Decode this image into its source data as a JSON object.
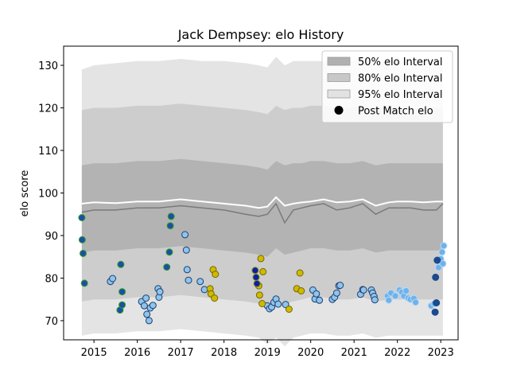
{
  "chart_data": {
    "type": "scatter",
    "title": "Jack Dempsey: elo History",
    "xlabel": "",
    "ylabel": "elo score",
    "xlim": [
      2014.3,
      2023.4
    ],
    "ylim": [
      65.5,
      134.5
    ],
    "x_ticks": [
      2015,
      2016,
      2017,
      2018,
      2019,
      2020,
      2021,
      2022,
      2023
    ],
    "y_ticks": [
      70,
      80,
      90,
      100,
      110,
      120,
      130
    ],
    "grid": false,
    "legend_placement": "top-right",
    "legend": [
      {
        "label": "50% elo Interval",
        "color": "#b0b0b0"
      },
      {
        "label": "80% elo Interval",
        "color": "#c8c8c8"
      },
      {
        "label": "95% elo Interval",
        "color": "#e2e2e2"
      },
      {
        "label": "Post Match elo",
        "color": "#000000"
      }
    ],
    "bands": {
      "x": [
        2014.72,
        2015.0,
        2015.5,
        2016.0,
        2016.5,
        2017.0,
        2017.5,
        2018.0,
        2018.5,
        2018.8,
        2019.0,
        2019.2,
        2019.4,
        2019.6,
        2019.8,
        2020.0,
        2020.3,
        2020.6,
        2020.9,
        2021.2,
        2021.5,
        2021.8,
        2022.0,
        2022.3,
        2022.6,
        2022.9,
        2023.05
      ],
      "p95_upper": [
        129,
        130,
        130.5,
        131,
        131,
        131.5,
        131,
        131,
        130.5,
        130,
        129.5,
        132,
        130,
        131,
        131,
        131,
        131,
        130.5,
        131,
        131.5,
        130.5,
        131,
        131,
        131,
        131,
        131,
        131
      ],
      "p80_upper": [
        119.5,
        120,
        120,
        120.5,
        120.5,
        121,
        120.5,
        120,
        119.5,
        119,
        118.5,
        120.5,
        119.5,
        120,
        120,
        120.5,
        120.5,
        120,
        120,
        120.5,
        119.5,
        120,
        120,
        120,
        120,
        120,
        120
      ],
      "p50_upper": [
        106.5,
        107,
        107,
        107.5,
        107.5,
        108,
        107.5,
        107,
        106.5,
        106,
        105.5,
        107.5,
        106.5,
        107,
        107,
        107.5,
        107.5,
        107,
        107,
        107.5,
        106.5,
        107,
        107,
        107,
        107,
        107,
        107
      ],
      "median": [
        97.5,
        97.8,
        97.6,
        98,
        98,
        98.5,
        98,
        97.5,
        97,
        96.5,
        96.8,
        99,
        97,
        97.5,
        97.8,
        98,
        98.5,
        97.8,
        98,
        98.5,
        97,
        97.8,
        98,
        98,
        97.8,
        98,
        98
      ],
      "mean": [
        95.5,
        96,
        96,
        96.5,
        96.5,
        97,
        96.5,
        96,
        95,
        94.5,
        95,
        97.5,
        93,
        96,
        96.5,
        97,
        97.5,
        96,
        96.5,
        97.5,
        95,
        96.5,
        96.5,
        96.5,
        96,
        96,
        97.5
      ],
      "p50_lower": [
        86,
        86.5,
        86.5,
        87,
        87,
        87.5,
        87,
        86.5,
        86,
        85.5,
        85,
        87,
        85.5,
        86,
        86.5,
        87,
        87,
        86.5,
        86.5,
        87,
        86,
        86.5,
        86.5,
        86.5,
        86.5,
        86.5,
        86.5
      ],
      "p80_lower": [
        74.5,
        75,
        75,
        75.5,
        75.5,
        76,
        75.5,
        75,
        74.5,
        74,
        73.5,
        75.5,
        74,
        74.5,
        75,
        75.5,
        75.5,
        75,
        75,
        75.5,
        74.5,
        75,
        75,
        75,
        75,
        75,
        75
      ],
      "p95_lower": [
        66.5,
        67,
        67,
        67.5,
        67.5,
        68,
        67.5,
        67,
        66.5,
        66,
        64.5,
        66,
        64,
        66,
        66.5,
        67,
        67,
        66.5,
        66.5,
        67,
        66,
        66.5,
        66.5,
        66.5,
        66.5,
        66.5,
        66.5
      ]
    },
    "point_groups": [
      {
        "fill": "#1f4fa3",
        "edge": "#2aa02a",
        "points": [
          [
            2014.72,
            94.2
          ],
          [
            2014.73,
            89.0
          ],
          [
            2014.75,
            85.8
          ],
          [
            2014.78,
            78.8
          ],
          [
            2015.62,
            83.2
          ],
          [
            2015.6,
            72.5
          ],
          [
            2015.65,
            73.7
          ],
          [
            2015.65,
            76.8
          ],
          [
            2016.68,
            82.6
          ],
          [
            2016.74,
            86.1
          ],
          [
            2016.76,
            92.3
          ],
          [
            2016.78,
            94.5
          ]
        ]
      },
      {
        "fill": "#8fc4ec",
        "edge": "#1f3f6f",
        "points": [
          [
            2015.38,
            79.2
          ],
          [
            2015.43,
            79.9
          ],
          [
            2016.1,
            74.5
          ],
          [
            2016.16,
            73.5
          ],
          [
            2016.2,
            75.3
          ],
          [
            2016.22,
            71.5
          ],
          [
            2016.27,
            70.0
          ],
          [
            2016.3,
            73.0
          ],
          [
            2016.36,
            73.6
          ],
          [
            2016.48,
            77.5
          ],
          [
            2016.5,
            75.5
          ],
          [
            2016.52,
            76.8
          ],
          [
            2017.1,
            90.2
          ],
          [
            2017.13,
            86.6
          ],
          [
            2017.15,
            82.0
          ],
          [
            2017.18,
            79.5
          ],
          [
            2017.45,
            79.2
          ],
          [
            2017.55,
            77.3
          ],
          [
            2019.0,
            73.5
          ],
          [
            2019.05,
            72.8
          ],
          [
            2019.1,
            73.2
          ],
          [
            2019.15,
            74.3
          ],
          [
            2019.2,
            75.1
          ],
          [
            2019.25,
            73.9
          ],
          [
            2019.42,
            73.8
          ],
          [
            2020.05,
            77.2
          ],
          [
            2020.1,
            75.1
          ],
          [
            2020.13,
            76.3
          ],
          [
            2020.2,
            74.8
          ],
          [
            2020.5,
            75.0
          ],
          [
            2020.55,
            75.5
          ],
          [
            2020.6,
            76.5
          ],
          [
            2020.65,
            78.2
          ],
          [
            2020.68,
            78.3
          ],
          [
            2021.15,
            76.2
          ],
          [
            2021.2,
            77.3
          ],
          [
            2021.22,
            77.2
          ],
          [
            2021.4,
            77.2
          ],
          [
            2021.43,
            76.5
          ],
          [
            2021.46,
            75.7
          ],
          [
            2021.48,
            74.9
          ]
        ]
      },
      {
        "fill": "#d4b800",
        "edge": "#6b6b00",
        "points": [
          [
            2017.75,
            82.0
          ],
          [
            2017.8,
            80.9
          ],
          [
            2017.68,
            77.5
          ],
          [
            2017.7,
            76.3
          ],
          [
            2017.78,
            75.3
          ],
          [
            2018.85,
            84.6
          ],
          [
            2018.9,
            81.5
          ],
          [
            2018.8,
            78.2
          ],
          [
            2018.82,
            76.0
          ],
          [
            2018.88,
            74.0
          ],
          [
            2019.5,
            72.7
          ],
          [
            2019.68,
            77.5
          ],
          [
            2019.75,
            81.2
          ],
          [
            2019.78,
            77.0
          ]
        ]
      },
      {
        "fill": "#0a1fb0",
        "edge": "#8b8b00",
        "points": [
          [
            2018.72,
            81.8
          ],
          [
            2018.74,
            80.2
          ],
          [
            2018.76,
            78.7
          ]
        ]
      },
      {
        "fill": "#6fb2ea",
        "edge": "#b8d9f5",
        "points": [
          [
            2021.77,
            75.8
          ],
          [
            2021.8,
            74.8
          ],
          [
            2021.85,
            76.5
          ],
          [
            2021.95,
            75.8
          ],
          [
            2022.05,
            77.2
          ],
          [
            2022.1,
            76.7
          ],
          [
            2022.15,
            75.8
          ],
          [
            2022.2,
            77.0
          ],
          [
            2022.25,
            75.3
          ],
          [
            2022.3,
            75.0
          ],
          [
            2022.38,
            75.2
          ],
          [
            2022.42,
            74.3
          ],
          [
            2022.78,
            73.5
          ],
          [
            2022.85,
            74.0
          ],
          [
            2022.95,
            82.5
          ],
          [
            2023.0,
            84.5
          ],
          [
            2023.03,
            86.1
          ],
          [
            2023.07,
            87.6
          ],
          [
            2023.05,
            83.4
          ]
        ]
      },
      {
        "fill": "#1a4a8f",
        "edge": "#1a4a8f",
        "points": [
          [
            2022.87,
            72.0
          ],
          [
            2022.9,
            74.2
          ],
          [
            2022.88,
            80.2
          ],
          [
            2022.92,
            84.2
          ]
        ]
      }
    ]
  }
}
